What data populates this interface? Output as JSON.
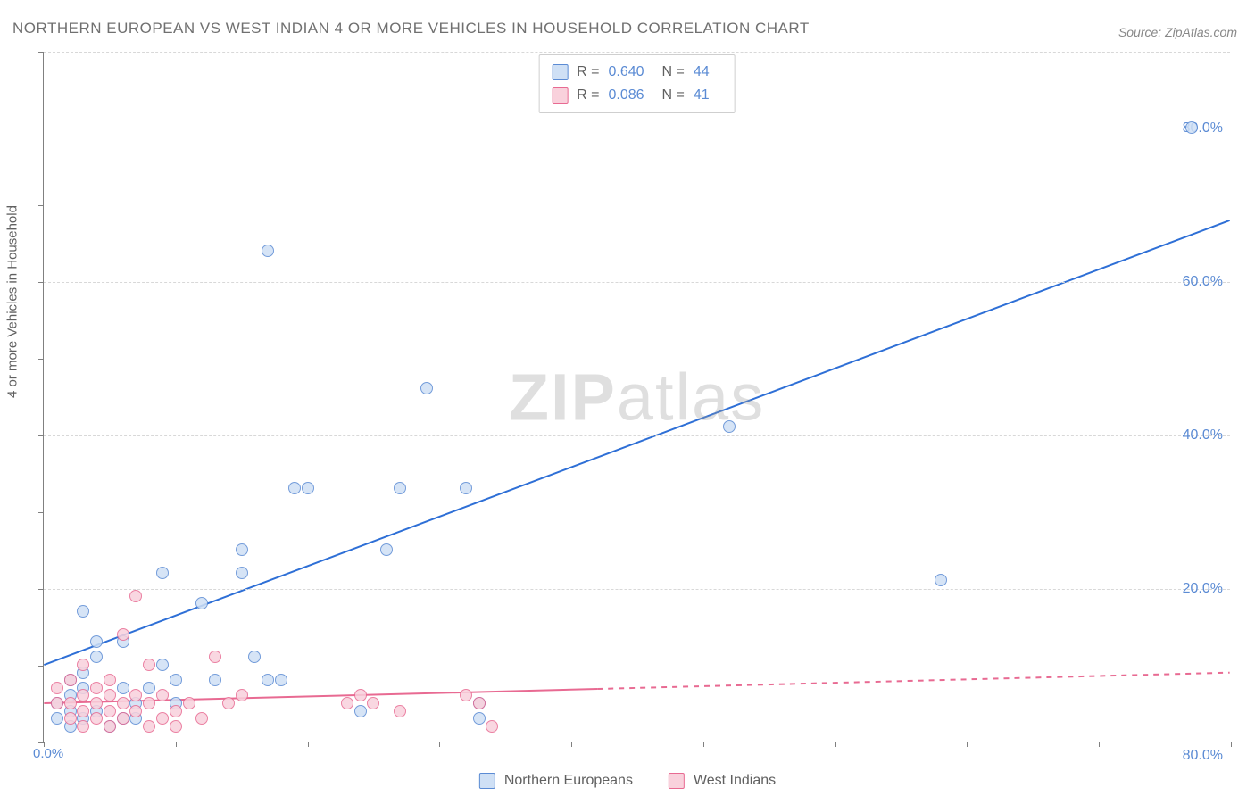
{
  "title": "NORTHERN EUROPEAN VS WEST INDIAN 4 OR MORE VEHICLES IN HOUSEHOLD CORRELATION CHART",
  "source": "Source: ZipAtlas.com",
  "watermark": {
    "bold": "ZIP",
    "rest": "atlas"
  },
  "y_axis_label": "4 or more Vehicles in Household",
  "chart": {
    "type": "scatter",
    "background_color": "#ffffff",
    "grid_color": "#d8d8d8",
    "axis_color": "#808080",
    "tick_label_color": "#5b8bd4",
    "xlim": [
      0,
      90
    ],
    "ylim": [
      0,
      90
    ],
    "x_tick_positions": [
      0,
      10,
      20,
      30,
      40,
      50,
      60,
      70,
      80,
      90
    ],
    "y_tick_positions": [
      0,
      10,
      20,
      30,
      40,
      50,
      60,
      70,
      80,
      90
    ],
    "y_grid_labels": [
      {
        "v": 20,
        "label": "20.0%"
      },
      {
        "v": 40,
        "label": "40.0%"
      },
      {
        "v": 60,
        "label": "60.0%"
      },
      {
        "v": 80,
        "label": "80.0%"
      }
    ],
    "x_min_label": "0.0%",
    "x_max_label": "80.0%",
    "series": [
      {
        "name": "Northern Europeans",
        "marker_fill": "#cfe0f5",
        "marker_stroke": "#5b8bd4",
        "marker_radius": 7,
        "trend_color": "#2e6fd6",
        "trend_width": 2,
        "trend": {
          "x1": 0,
          "y1": 10,
          "x2": 90,
          "y2": 68,
          "solid_until_x": 90
        },
        "points": [
          [
            87,
            80
          ],
          [
            68,
            21
          ],
          [
            52,
            41
          ],
          [
            29,
            46
          ],
          [
            32,
            33
          ],
          [
            33,
            3
          ],
          [
            33,
            5
          ],
          [
            26,
            25
          ],
          [
            17,
            64
          ],
          [
            12,
            18
          ],
          [
            15,
            22
          ],
          [
            19,
            33
          ],
          [
            20,
            33
          ],
          [
            27,
            33
          ],
          [
            15,
            25
          ],
          [
            9,
            22
          ],
          [
            13,
            8
          ],
          [
            16,
            11
          ],
          [
            17,
            8
          ],
          [
            18,
            8
          ],
          [
            10,
            8
          ],
          [
            3,
            17
          ],
          [
            4,
            13
          ],
          [
            6,
            13
          ],
          [
            4,
            11
          ],
          [
            2,
            2
          ],
          [
            7,
            5
          ],
          [
            6,
            7
          ],
          [
            9,
            10
          ],
          [
            3,
            9
          ],
          [
            2,
            6
          ],
          [
            2,
            4
          ],
          [
            4,
            4
          ],
          [
            7,
            3
          ],
          [
            10,
            5
          ],
          [
            3,
            3
          ],
          [
            5,
            2
          ],
          [
            6,
            3
          ],
          [
            8,
            7
          ],
          [
            2,
            8
          ],
          [
            3,
            7
          ],
          [
            1,
            5
          ],
          [
            1,
            3
          ],
          [
            24,
            4
          ]
        ]
      },
      {
        "name": "West Indians",
        "marker_fill": "#f9d1dc",
        "marker_stroke": "#e86a92",
        "marker_radius": 7,
        "trend_color": "#e86a92",
        "trend_width": 2,
        "trend": {
          "x1": 0,
          "y1": 5,
          "x2": 90,
          "y2": 9,
          "solid_until_x": 42
        },
        "points": [
          [
            1,
            5
          ],
          [
            1,
            7
          ],
          [
            2,
            3
          ],
          [
            2,
            5
          ],
          [
            2,
            8
          ],
          [
            3,
            2
          ],
          [
            3,
            4
          ],
          [
            3,
            6
          ],
          [
            3,
            10
          ],
          [
            4,
            3
          ],
          [
            4,
            5
          ],
          [
            4,
            7
          ],
          [
            5,
            2
          ],
          [
            5,
            4
          ],
          [
            5,
            6
          ],
          [
            5,
            8
          ],
          [
            6,
            3
          ],
          [
            6,
            5
          ],
          [
            6,
            14
          ],
          [
            7,
            19
          ],
          [
            7,
            4
          ],
          [
            7,
            6
          ],
          [
            8,
            2
          ],
          [
            8,
            5
          ],
          [
            8,
            10
          ],
          [
            9,
            3
          ],
          [
            9,
            6
          ],
          [
            10,
            4
          ],
          [
            10,
            2
          ],
          [
            11,
            5
          ],
          [
            12,
            3
          ],
          [
            13,
            11
          ],
          [
            14,
            5
          ],
          [
            15,
            6
          ],
          [
            23,
            5
          ],
          [
            24,
            6
          ],
          [
            25,
            5
          ],
          [
            27,
            4
          ],
          [
            32,
            6
          ],
          [
            33,
            5
          ],
          [
            34,
            2
          ]
        ]
      }
    ]
  },
  "stats": [
    {
      "r_label": "R =",
      "r": "0.640",
      "n_label": "N =",
      "n": "44",
      "fill": "#cfe0f5",
      "stroke": "#5b8bd4"
    },
    {
      "r_label": "R =",
      "r": "0.086",
      "n_label": "N =",
      "n": "41",
      "fill": "#f9d1dc",
      "stroke": "#e86a92"
    }
  ],
  "legend": [
    {
      "label": "Northern Europeans",
      "fill": "#cfe0f5",
      "stroke": "#5b8bd4"
    },
    {
      "label": "West Indians",
      "fill": "#f9d1dc",
      "stroke": "#e86a92"
    }
  ]
}
